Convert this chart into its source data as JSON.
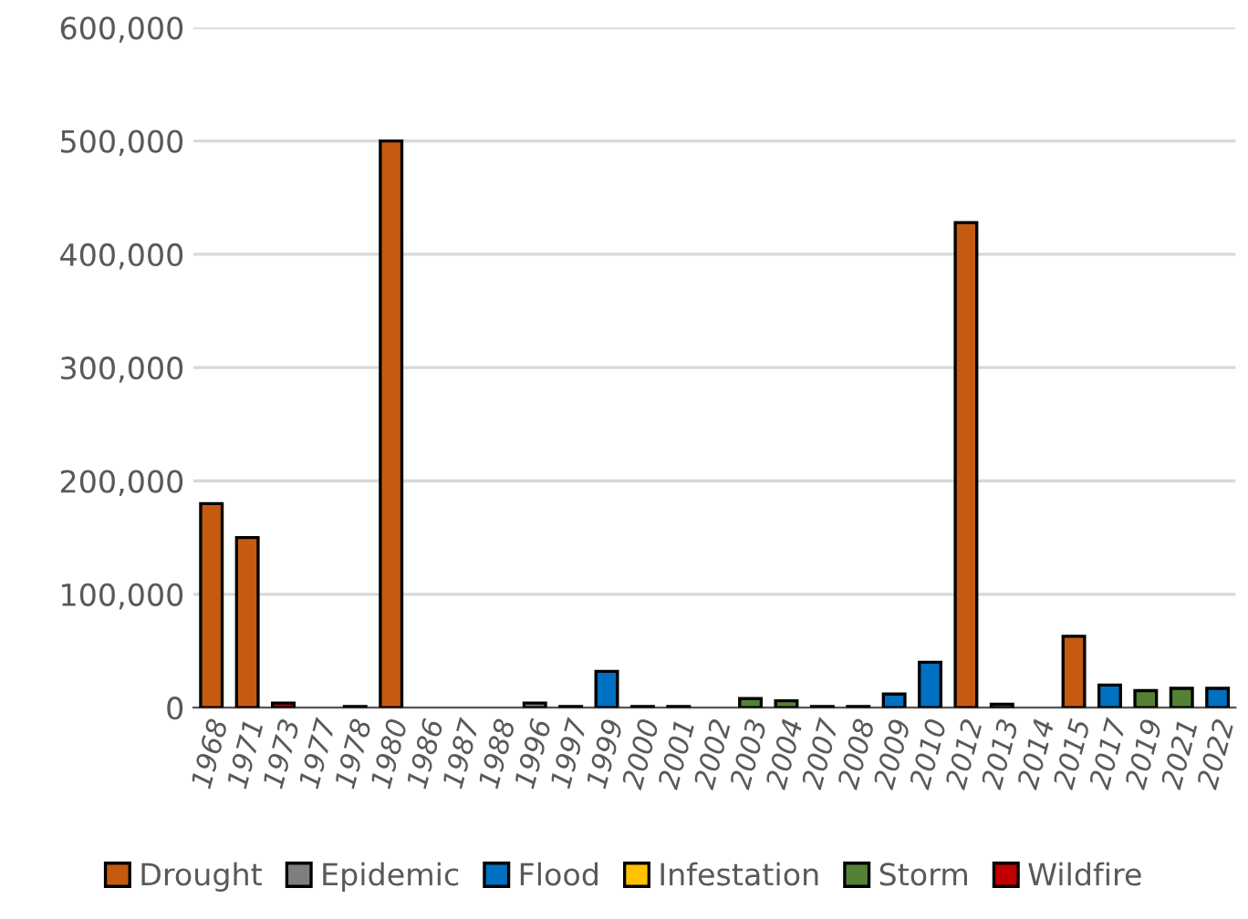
{
  "chart_data": {
    "type": "bar",
    "categories": [
      "1968",
      "1971",
      "1973",
      "1977",
      "1978",
      "1980",
      "1986",
      "1987",
      "1988",
      "1996",
      "1997",
      "1999",
      "2000",
      "2001",
      "2002",
      "2003",
      "2004",
      "2007",
      "2008",
      "2009",
      "2010",
      "2012",
      "2013",
      "2014",
      "2015",
      "2017",
      "2019",
      "2021",
      "2022"
    ],
    "series": [
      {
        "name": "Drought",
        "color": "#c55a11",
        "values": [
          180000,
          150000,
          null,
          null,
          null,
          500000,
          null,
          null,
          null,
          null,
          null,
          null,
          null,
          null,
          null,
          null,
          null,
          null,
          null,
          null,
          null,
          428000,
          null,
          null,
          63000,
          null,
          null,
          null,
          null
        ]
      },
      {
        "name": "Epidemic",
        "color": "#7f7f7f",
        "values": [
          null,
          null,
          null,
          null,
          1000,
          null,
          null,
          null,
          null,
          4000,
          1000,
          null,
          1000,
          1000,
          null,
          null,
          null,
          1000,
          1000,
          null,
          null,
          null,
          3000,
          null,
          null,
          null,
          null,
          null,
          null
        ]
      },
      {
        "name": "Flood",
        "color": "#0070c0",
        "values": [
          null,
          null,
          null,
          null,
          null,
          null,
          null,
          null,
          null,
          null,
          null,
          32000,
          null,
          null,
          null,
          null,
          null,
          null,
          null,
          12000,
          40000,
          null,
          null,
          null,
          null,
          20000,
          null,
          null,
          17000
        ]
      },
      {
        "name": "Infestation",
        "color": "#ffc000",
        "values": [
          null,
          null,
          null,
          null,
          null,
          null,
          null,
          null,
          null,
          null,
          null,
          null,
          null,
          null,
          null,
          null,
          null,
          null,
          null,
          null,
          null,
          null,
          null,
          null,
          null,
          null,
          null,
          null,
          null
        ]
      },
      {
        "name": "Storm",
        "color": "#548235",
        "values": [
          null,
          null,
          null,
          null,
          null,
          null,
          null,
          null,
          null,
          null,
          null,
          null,
          null,
          null,
          null,
          8000,
          6000,
          null,
          null,
          null,
          null,
          null,
          null,
          null,
          null,
          null,
          15000,
          17000,
          null
        ]
      },
      {
        "name": "Wildfire",
        "color": "#c00000",
        "values": [
          null,
          null,
          4000,
          null,
          null,
          null,
          null,
          null,
          null,
          null,
          null,
          null,
          null,
          null,
          null,
          null,
          null,
          null,
          null,
          null,
          null,
          null,
          null,
          null,
          null,
          null,
          null,
          null,
          null
        ]
      }
    ],
    "ylim": [
      0,
      600000
    ],
    "yticks": [
      {
        "value": 0,
        "label": "0"
      },
      {
        "value": 100000,
        "label": "100,000"
      },
      {
        "value": 200000,
        "label": "200,000"
      },
      {
        "value": 300000,
        "label": "300,000"
      },
      {
        "value": 400000,
        "label": "400,000"
      },
      {
        "value": 500000,
        "label": "500,000"
      },
      {
        "value": 600000,
        "label": "600,000"
      }
    ],
    "grid": "y",
    "legend": "bottom"
  }
}
